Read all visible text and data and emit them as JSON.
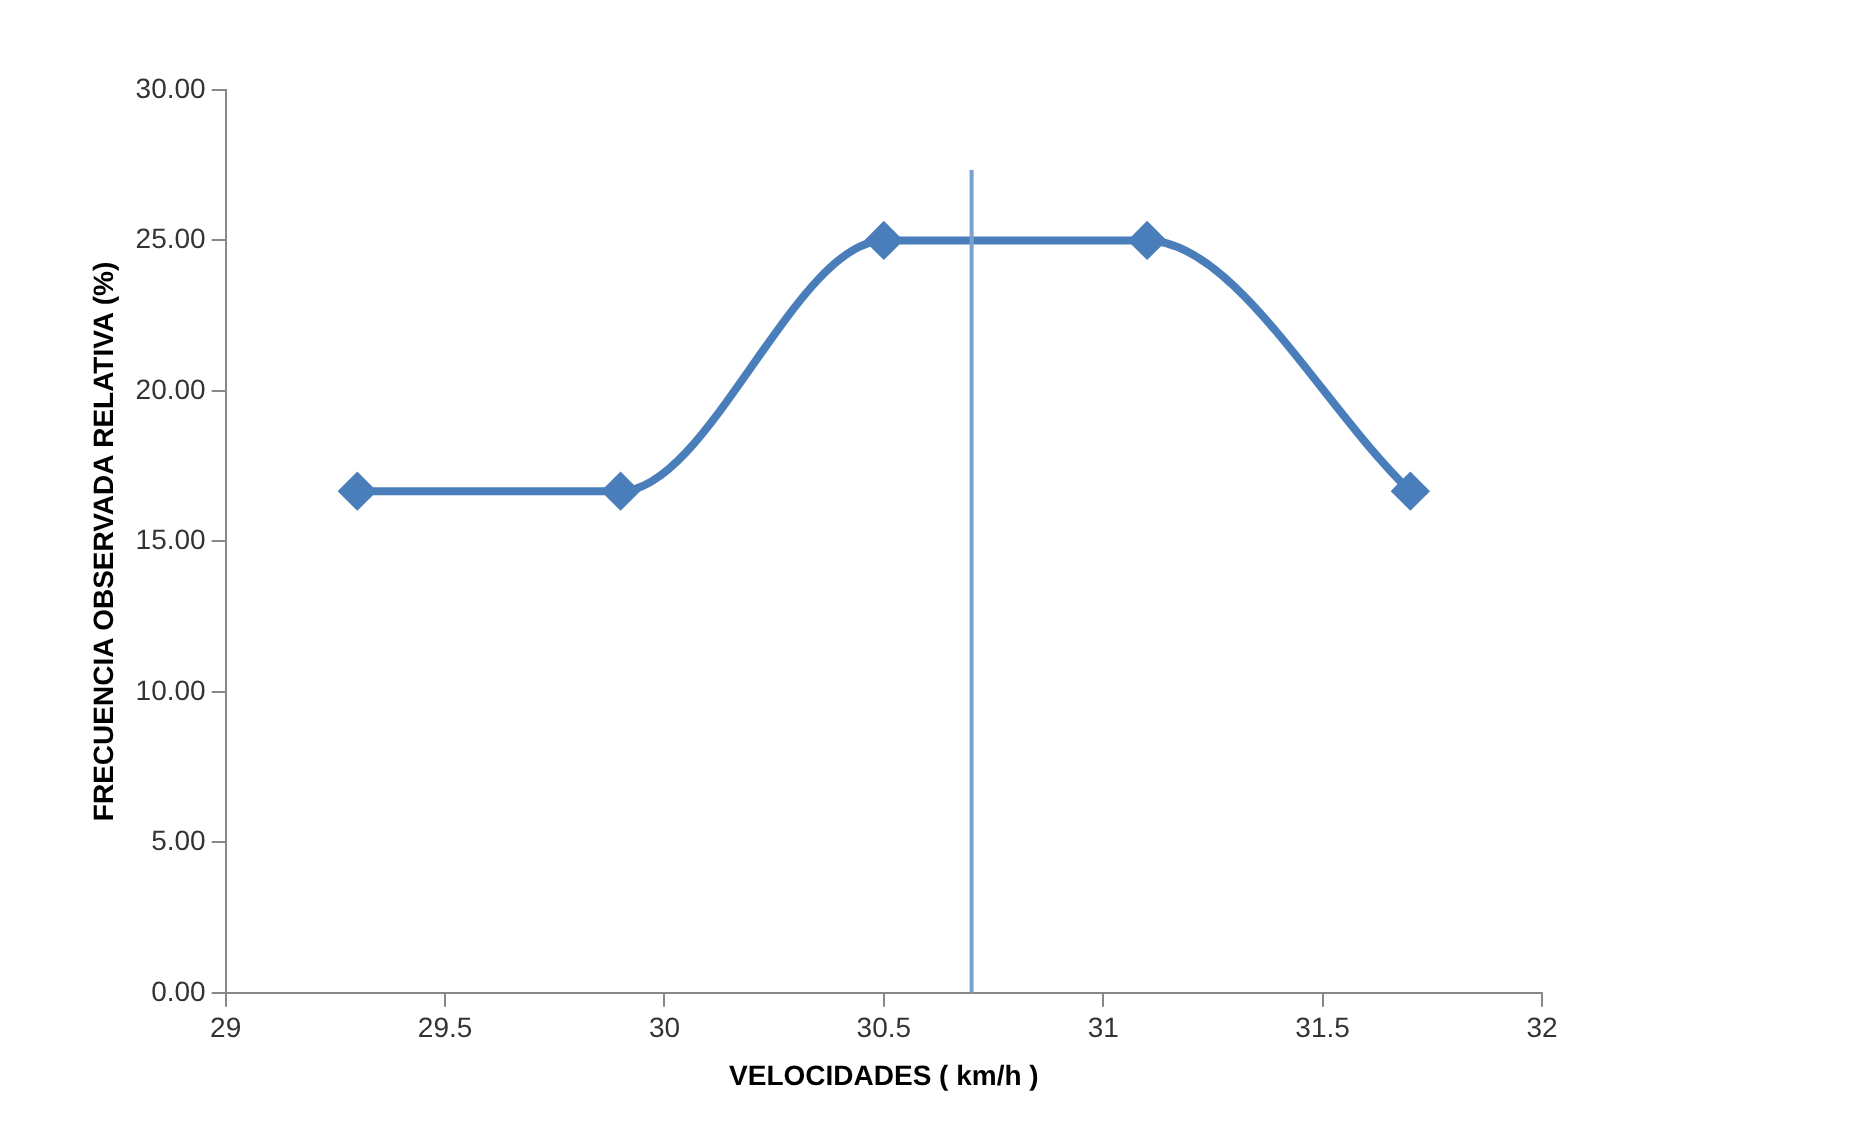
{
  "chart_data": {
    "type": "line",
    "xlabel": "VELOCIDADES ( km/h )",
    "ylabel": "FRECUENCIA OBSERVADA RELATIVA (%)",
    "x": [
      29.3,
      29.9,
      30.5,
      31.1,
      31.7
    ],
    "series": [
      {
        "color": "#4a7ebb",
        "values": [
          16.67,
          16.67,
          25,
          25,
          16.67
        ]
      }
    ],
    "xlim": [
      29,
      32
    ],
    "xticks": [
      29,
      29.5,
      30,
      30.5,
      31,
      31.5,
      32
    ],
    "ylim": [
      0,
      30
    ],
    "yticks": [
      {
        "value": 0,
        "label": "0.00"
      },
      {
        "value": 5,
        "label": "5.00"
      },
      {
        "value": 10,
        "label": "10.00"
      },
      {
        "value": 15,
        "label": "15.00"
      },
      {
        "value": 20,
        "label": "20.00"
      },
      {
        "value": 25,
        "label": "25.00"
      },
      {
        "value": 30,
        "label": "30.00"
      }
    ],
    "ref_lines": [
      {
        "axis": "x",
        "value": 30.7,
        "color": "#7aa0d0"
      }
    ],
    "grid": false,
    "legend": false,
    "marker": "diamond",
    "line_style": "solid"
  }
}
